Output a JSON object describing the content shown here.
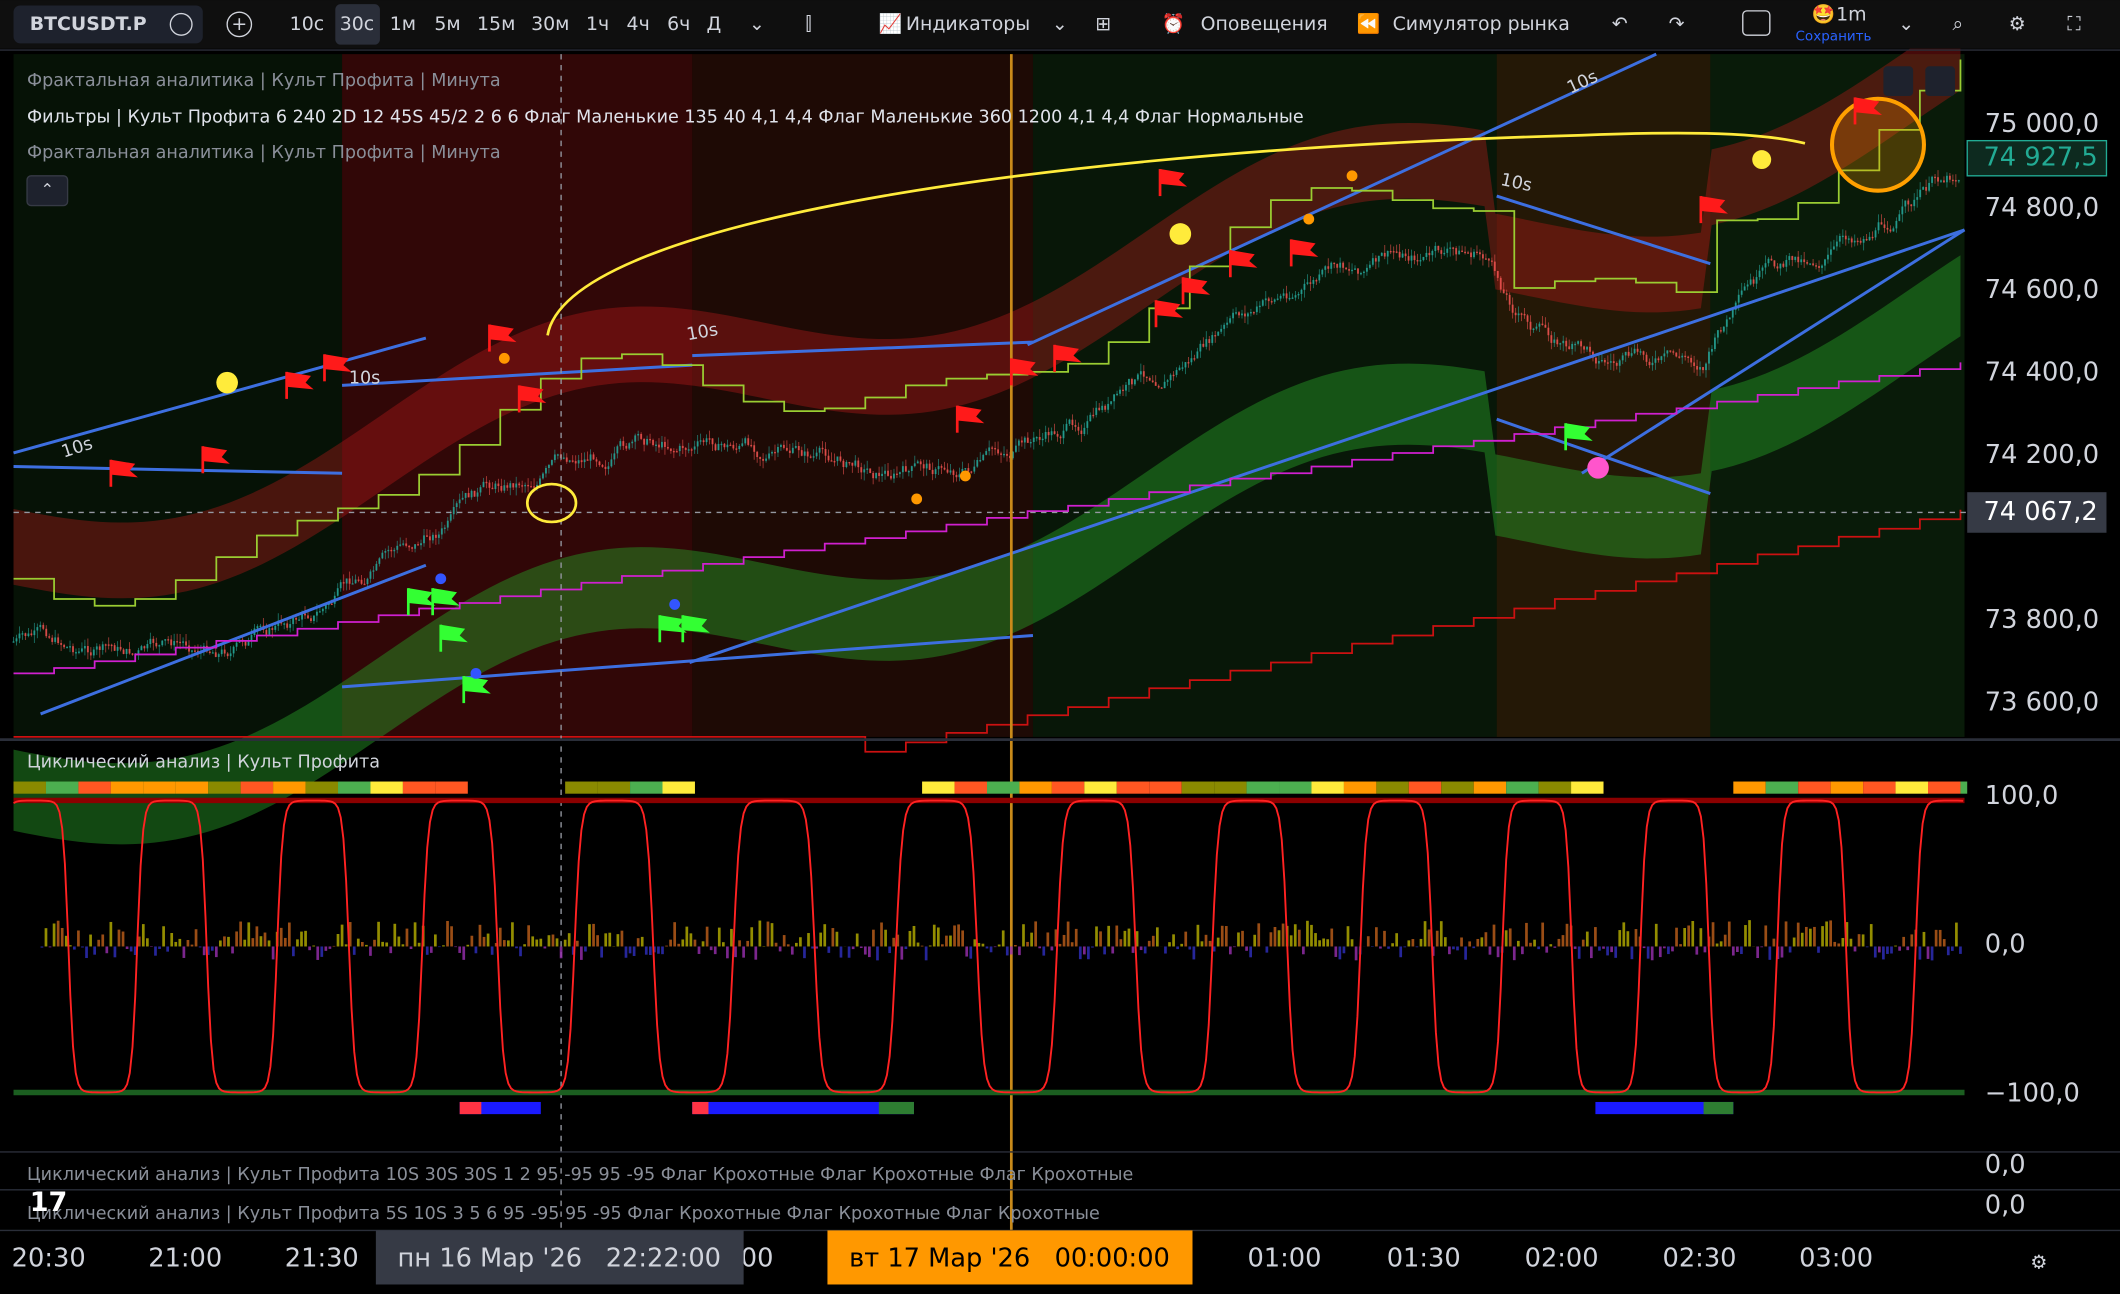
{
  "toolbar": {
    "symbol": "BTCUSDT.P",
    "intervals": [
      "10с",
      "30с",
      "1м",
      "5м",
      "15м",
      "30м",
      "1ч",
      "4ч",
      "6ч",
      "Д"
    ],
    "indicators": "Индикаторы",
    "alerts": "Оповещения",
    "replay": "Симулятор рынка",
    "layout": "1m",
    "save": "Сохранить"
  },
  "main_pane": {
    "legend": [
      "Фрактальная аналитика | Культ Профита | Минута",
      "Фильтры | Культ Профита 6 240 2D 12 45S 45/2 2 6 6 Флаг Маленькие 135 40 4,1 4,4 Флаг Маленькие 360 1200 4,1 4,4 Флаг Нормальные",
      "Фрактальная аналитика | Культ Профита | Минута"
    ],
    "channel_labels": [
      "10s",
      "10s",
      "10s",
      "10s",
      "10s"
    ],
    "price_labels": [
      "75 000,0",
      "74 800,0",
      "74 600,0",
      "74 400,0",
      "74 200,0",
      "73 800,0",
      "73 600,0"
    ],
    "last_price": "74 927,5",
    "crosshair_price": "74 067,2"
  },
  "oscillator_pane": {
    "title": "Циклический анализ | Культ Профита",
    "labels": [
      "100,0",
      "0,0",
      "−100,0"
    ]
  },
  "lower_panes": [
    {
      "legend": "Циклический анализ | Культ Профита 10S 30S 30S 1 2 95 -95 95 -95 Флаг Крохотные Флаг Крохотные Флаг Крохотные",
      "label": "0,0"
    },
    {
      "legend": "Циклический анализ | Культ Профита 5S 10S 3 5 6 95 -95 95 -95 Флаг Крохотные Флаг Крохотные Флаг Крохотные",
      "label": "0,0"
    }
  ],
  "time_axis": {
    "labels": [
      "20:30",
      "21:00",
      "21:30",
      "00",
      "01:00",
      "01:30",
      "02:00",
      "02:30",
      "03:00"
    ],
    "crosshair_date": "пн 16 Мар '26",
    "crosshair_time": "22:22:00",
    "marker_date": "вт 17 Мар '26",
    "marker_time": "00:00:00"
  }
}
